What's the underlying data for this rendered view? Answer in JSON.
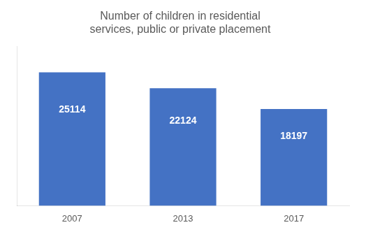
{
  "chart_data": {
    "type": "bar",
    "title": "Number of children in residential\nservices, public or private placement",
    "categories": [
      "2007",
      "2013",
      "2017"
    ],
    "values": [
      25114,
      22124,
      18197
    ],
    "color": "#4472C4",
    "ylim": [
      0,
      30000
    ],
    "grid": false,
    "data_labels": true,
    "tick_labels": "x"
  }
}
